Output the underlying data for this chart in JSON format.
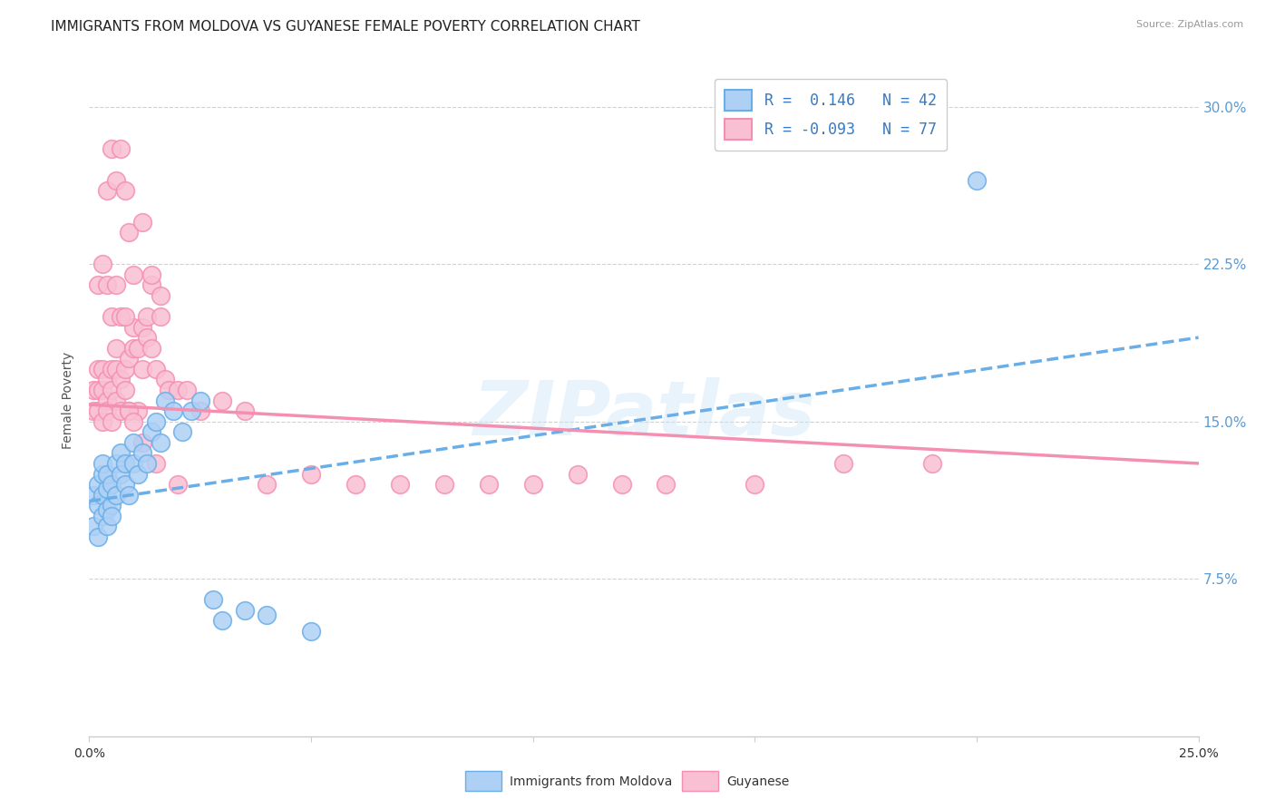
{
  "title": "IMMIGRANTS FROM MOLDOVA VS GUYANESE FEMALE POVERTY CORRELATION CHART",
  "source": "Source: ZipAtlas.com",
  "ylabel": "Female Poverty",
  "ytick_labels": [
    "7.5%",
    "15.0%",
    "22.5%",
    "30.0%"
  ],
  "ytick_values": [
    0.075,
    0.15,
    0.225,
    0.3
  ],
  "xlim": [
    0.0,
    0.25
  ],
  "ylim": [
    0.0,
    0.32
  ],
  "xtick_positions": [
    0.0,
    0.05,
    0.1,
    0.15,
    0.2,
    0.25
  ],
  "legend_r_blue": "0.146",
  "legend_n_blue": "42",
  "legend_r_pink": "-0.093",
  "legend_n_pink": "77",
  "legend_label_blue": "Immigrants from Moldova",
  "legend_label_pink": "Guyanese",
  "watermark": "ZIPatlas",
  "blue_scatter_x": [
    0.001,
    0.001,
    0.002,
    0.002,
    0.002,
    0.003,
    0.003,
    0.003,
    0.003,
    0.004,
    0.004,
    0.004,
    0.004,
    0.005,
    0.005,
    0.005,
    0.006,
    0.006,
    0.007,
    0.007,
    0.008,
    0.008,
    0.009,
    0.01,
    0.01,
    0.011,
    0.012,
    0.013,
    0.014,
    0.015,
    0.016,
    0.017,
    0.019,
    0.021,
    0.023,
    0.025,
    0.028,
    0.03,
    0.035,
    0.04,
    0.05,
    0.2
  ],
  "blue_scatter_y": [
    0.1,
    0.115,
    0.11,
    0.095,
    0.12,
    0.105,
    0.115,
    0.125,
    0.13,
    0.118,
    0.108,
    0.1,
    0.125,
    0.11,
    0.105,
    0.12,
    0.115,
    0.13,
    0.125,
    0.135,
    0.12,
    0.13,
    0.115,
    0.13,
    0.14,
    0.125,
    0.135,
    0.13,
    0.145,
    0.15,
    0.14,
    0.16,
    0.155,
    0.145,
    0.155,
    0.16,
    0.065,
    0.055,
    0.06,
    0.058,
    0.05,
    0.265
  ],
  "pink_scatter_x": [
    0.001,
    0.001,
    0.002,
    0.002,
    0.002,
    0.003,
    0.003,
    0.003,
    0.004,
    0.004,
    0.004,
    0.005,
    0.005,
    0.005,
    0.006,
    0.006,
    0.006,
    0.007,
    0.007,
    0.008,
    0.008,
    0.009,
    0.009,
    0.01,
    0.01,
    0.011,
    0.011,
    0.012,
    0.012,
    0.013,
    0.013,
    0.014,
    0.014,
    0.015,
    0.016,
    0.017,
    0.018,
    0.02,
    0.022,
    0.025,
    0.03,
    0.035,
    0.04,
    0.05,
    0.06,
    0.07,
    0.08,
    0.09,
    0.1,
    0.11,
    0.12,
    0.13,
    0.15,
    0.17,
    0.19,
    0.004,
    0.005,
    0.006,
    0.007,
    0.008,
    0.009,
    0.01,
    0.012,
    0.014,
    0.016,
    0.002,
    0.003,
    0.004,
    0.005,
    0.006,
    0.007,
    0.008,
    0.009,
    0.01,
    0.012,
    0.015,
    0.02
  ],
  "pink_scatter_y": [
    0.155,
    0.165,
    0.155,
    0.165,
    0.175,
    0.15,
    0.165,
    0.175,
    0.16,
    0.17,
    0.155,
    0.165,
    0.15,
    0.175,
    0.16,
    0.175,
    0.185,
    0.17,
    0.155,
    0.175,
    0.165,
    0.18,
    0.155,
    0.185,
    0.195,
    0.185,
    0.155,
    0.195,
    0.175,
    0.19,
    0.2,
    0.215,
    0.185,
    0.175,
    0.2,
    0.17,
    0.165,
    0.165,
    0.165,
    0.155,
    0.16,
    0.155,
    0.12,
    0.125,
    0.12,
    0.12,
    0.12,
    0.12,
    0.12,
    0.125,
    0.12,
    0.12,
    0.12,
    0.13,
    0.13,
    0.26,
    0.28,
    0.265,
    0.28,
    0.26,
    0.24,
    0.22,
    0.245,
    0.22,
    0.21,
    0.215,
    0.225,
    0.215,
    0.2,
    0.215,
    0.2,
    0.2,
    0.155,
    0.15,
    0.14,
    0.13,
    0.12
  ],
  "blue_line_x": [
    0.0,
    0.25
  ],
  "blue_line_y_start": 0.112,
  "blue_line_y_end": 0.19,
  "pink_line_x": [
    0.0,
    0.25
  ],
  "pink_line_y_start": 0.158,
  "pink_line_y_end": 0.13,
  "blue_color": "#6aaee8",
  "blue_fill": "#aed0f5",
  "pink_color": "#f48fb1",
  "pink_fill": "#f9c0d4",
  "grid_color": "#cccccc",
  "background_color": "#ffffff",
  "title_fontsize": 11,
  "axis_fontsize": 9
}
